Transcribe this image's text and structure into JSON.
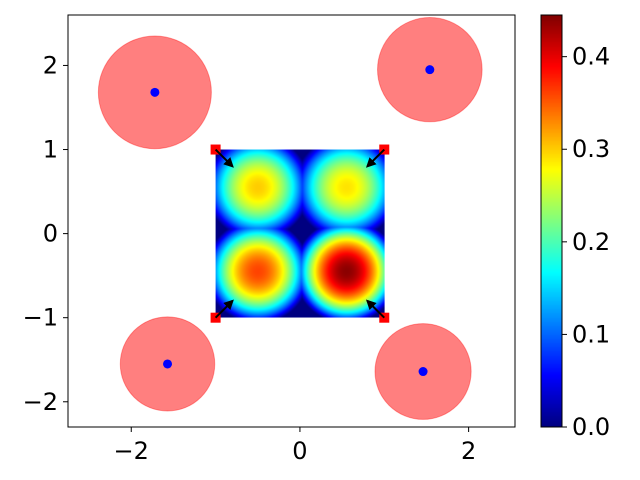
{
  "chart_data": {
    "type": "heatmap",
    "title": "",
    "xlabel": "",
    "ylabel": "",
    "xlim": [
      -2.75,
      2.55
    ],
    "ylim": [
      -2.3,
      2.6
    ],
    "x_ticks": [
      {
        "value": -2,
        "label": "−2"
      },
      {
        "value": 0,
        "label": "0"
      },
      {
        "value": 2,
        "label": "2"
      }
    ],
    "y_ticks": [
      {
        "value": 2,
        "label": "2"
      },
      {
        "value": 1,
        "label": "1"
      },
      {
        "value": 0,
        "label": "0"
      },
      {
        "value": -1,
        "label": "−1"
      },
      {
        "value": -2,
        "label": "−2"
      }
    ],
    "heatmap": {
      "x_range": [
        -1,
        1
      ],
      "y_range": [
        -1,
        1
      ],
      "colormap": "jet",
      "peaks": [
        {
          "x": 0.55,
          "y": -0.45,
          "value": 0.44
        },
        {
          "x": -0.5,
          "y": -0.45,
          "value": 0.36
        },
        {
          "x": -0.5,
          "y": 0.55,
          "value": 0.3
        },
        {
          "x": 0.55,
          "y": 0.55,
          "value": 0.29
        }
      ]
    },
    "colorbar": {
      "range": [
        0.0,
        0.445
      ],
      "ticks": [
        {
          "value": 0.0,
          "label": "0.0"
        },
        {
          "value": 0.1,
          "label": "0.1"
        },
        {
          "value": 0.2,
          "label": "0.2"
        },
        {
          "value": 0.3,
          "label": "0.3"
        },
        {
          "value": 0.4,
          "label": "0.4"
        }
      ]
    },
    "corner_markers": [
      {
        "x": -1,
        "y": 1,
        "dx": 0.2,
        "dy": -0.2
      },
      {
        "x": 1,
        "y": 1,
        "dx": -0.2,
        "dy": -0.2
      },
      {
        "x": -1,
        "y": -1,
        "dx": 0.2,
        "dy": 0.2
      },
      {
        "x": 1,
        "y": -1,
        "dx": -0.2,
        "dy": 0.2
      }
    ],
    "obstacles": [
      {
        "x": -1.72,
        "y": 1.68,
        "radius": 0.67
      },
      {
        "x": 1.54,
        "y": 1.95,
        "radius": 0.62
      },
      {
        "x": -1.57,
        "y": -1.55,
        "radius": 0.56
      },
      {
        "x": 1.46,
        "y": -1.64,
        "radius": 0.57
      }
    ],
    "colors": {
      "obstacle_fill": "#ff0000",
      "obstacle_alpha": 0.5,
      "obstacle_center": "#0000ff",
      "corner_marker": "#ff0000",
      "arrow": "#000000"
    }
  }
}
